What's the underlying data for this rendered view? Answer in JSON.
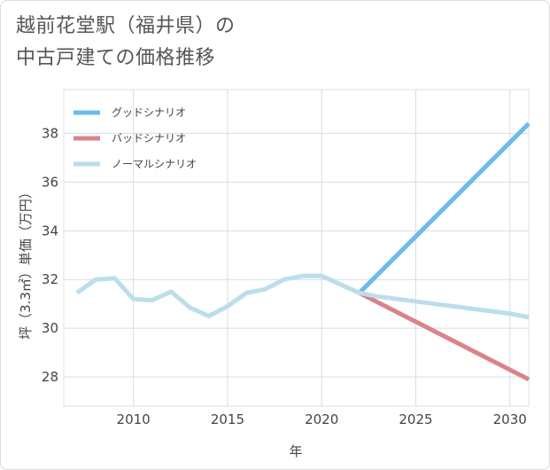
{
  "title_lines": [
    "越前花堂駅（福井県）の",
    "中古戸建ての価格推移"
  ],
  "chart_data": {
    "type": "line",
    "xlabel": "年",
    "ylabel": "坪（3.3㎡）単価（万円）",
    "xlim": [
      2006.3,
      2031
    ],
    "ylim": [
      26.8,
      39.8
    ],
    "x_ticks": [
      2010,
      2015,
      2020,
      2025,
      2030
    ],
    "y_ticks": [
      28,
      30,
      32,
      34,
      36,
      38
    ],
    "grid": true,
    "legend_position": "top-left",
    "series": [
      {
        "name": "グッドシナリオ",
        "color": "#6bbbeb",
        "x": [
          2022,
          2031
        ],
        "values": [
          31.45,
          38.4
        ]
      },
      {
        "name": "バッドシナリオ",
        "color": "#d9838b",
        "x": [
          2022,
          2031
        ],
        "values": [
          31.45,
          27.9
        ]
      },
      {
        "name": "ノーマルシナリオ",
        "color": "#bcdeeb",
        "x": [
          2007,
          2008,
          2009,
          2010,
          2011,
          2012,
          2013,
          2014,
          2015,
          2016,
          2017,
          2018,
          2019,
          2020,
          2021,
          2022,
          2023,
          2024,
          2025,
          2026,
          2027,
          2028,
          2029,
          2030,
          2031
        ],
        "values": [
          31.45,
          32.0,
          32.05,
          31.2,
          31.15,
          31.5,
          30.85,
          30.5,
          30.9,
          31.45,
          31.6,
          32.0,
          32.15,
          32.15,
          31.8,
          31.45,
          31.3,
          31.2,
          31.1,
          31.0,
          30.9,
          30.8,
          30.7,
          30.6,
          30.45
        ]
      }
    ]
  }
}
